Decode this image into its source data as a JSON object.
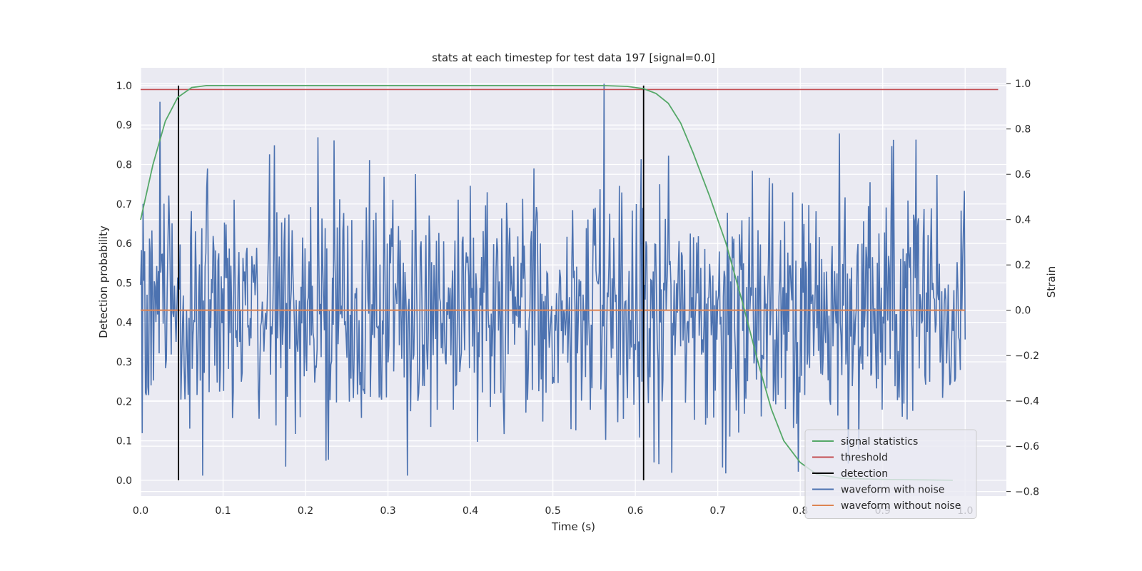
{
  "chart_data": {
    "type": "line",
    "title": "stats at each timestep for test data 197 [signal=0.0]",
    "xlabel": "Time (s)",
    "ylabel_left": "Detection probability",
    "ylabel_right": "Strain",
    "xlim": [
      0.0,
      1.05
    ],
    "ylim_left": [
      -0.04,
      1.045
    ],
    "ylim_right": [
      -0.82,
      1.07
    ],
    "x_ticks": [
      "0.0",
      "0.1",
      "0.2",
      "0.3",
      "0.4",
      "0.5",
      "0.6",
      "0.7",
      "0.8",
      "0.9",
      "1.0"
    ],
    "x_tick_values": [
      0.0,
      0.1,
      0.2,
      0.3,
      0.4,
      0.5,
      0.6,
      0.7,
      0.8,
      0.9,
      1.0
    ],
    "y_left_ticks": [
      "0.0",
      "0.1",
      "0.2",
      "0.3",
      "0.4",
      "0.5",
      "0.6",
      "0.7",
      "0.8",
      "0.9",
      "1.0"
    ],
    "y_left_tick_values": [
      0.0,
      0.1,
      0.2,
      0.3,
      0.4,
      0.5,
      0.6,
      0.7,
      0.8,
      0.9,
      1.0
    ],
    "y_right_ticks": [
      "−0.8",
      "−0.6",
      "−0.4",
      "−0.2",
      "0.0",
      "0.2",
      "0.4",
      "0.6",
      "0.8",
      "1.0"
    ],
    "y_right_tick_values": [
      -0.8,
      -0.6,
      -0.4,
      -0.2,
      0.0,
      0.2,
      0.4,
      0.6,
      0.8,
      1.0
    ],
    "grid": true,
    "legend_position": "bottom-right",
    "series": [
      {
        "name": "signal statistics",
        "axis": "left",
        "color": "#55a868",
        "x": [
          0.0,
          0.015,
          0.03,
          0.045,
          0.062,
          0.08,
          0.1,
          0.2,
          0.3,
          0.4,
          0.5,
          0.56,
          0.59,
          0.61,
          0.625,
          0.64,
          0.655,
          0.67,
          0.69,
          0.71,
          0.73,
          0.75,
          0.765,
          0.78,
          0.8,
          0.82,
          0.85,
          0.9,
          0.95,
          0.985
        ],
        "y": [
          0.66,
          0.8,
          0.91,
          0.97,
          0.995,
          1.0,
          1.0,
          1.0,
          1.0,
          1.0,
          1.0,
          1.0,
          0.998,
          0.992,
          0.98,
          0.955,
          0.905,
          0.83,
          0.72,
          0.6,
          0.45,
          0.29,
          0.18,
          0.1,
          0.045,
          0.015,
          0.005,
          0.002,
          0.001,
          0.0
        ]
      },
      {
        "name": "threshold",
        "axis": "left",
        "color": "#c44e52",
        "x": [
          0.0,
          1.04
        ],
        "y": [
          0.99,
          0.99
        ]
      },
      {
        "name": "detection",
        "axis": "left",
        "color": "#000000",
        "x": [
          0.046,
          0.61
        ],
        "y_range": [
          0.0,
          1.0
        ]
      },
      {
        "name": "waveform with noise",
        "axis": "right",
        "color": "#4c72b0",
        "x_range": [
          0.0,
          1.0
        ],
        "num_samples": 1024,
        "std": 0.27,
        "peaks": [
          {
            "x": 0.023,
            "y": 0.92
          },
          {
            "x": 0.562,
            "y": 1.0
          },
          {
            "x": 0.075,
            "y": -0.73
          },
          {
            "x": 0.324,
            "y": -0.73
          },
          {
            "x": 0.235,
            "y": 0.75
          },
          {
            "x": 0.176,
            "y": -0.69
          }
        ]
      },
      {
        "name": "waveform without noise",
        "axis": "right",
        "color": "#dd8452",
        "x": [
          0.0,
          1.0
        ],
        "y": [
          0.0,
          0.0
        ]
      }
    ]
  }
}
